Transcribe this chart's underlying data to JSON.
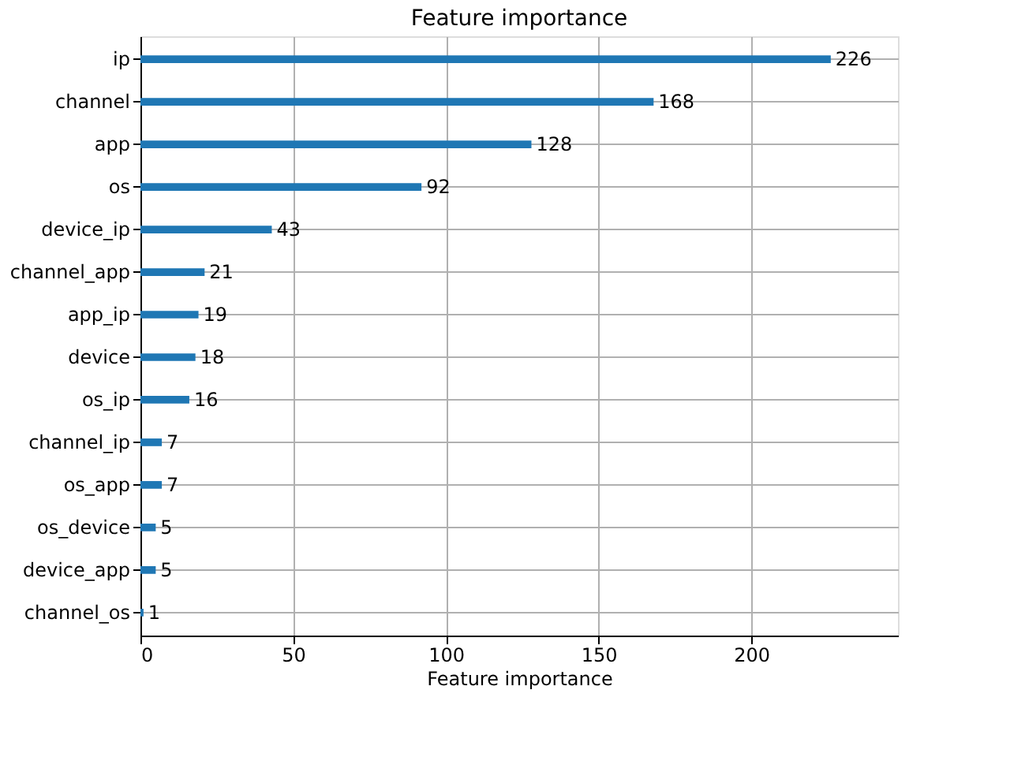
{
  "chart_data": {
    "type": "bar",
    "orientation": "horizontal",
    "title": "Feature importance",
    "xlabel": "Feature importance",
    "categories": [
      "ip",
      "channel",
      "app",
      "os",
      "device_ip",
      "channel_app",
      "app_ip",
      "device",
      "os_ip",
      "channel_ip",
      "os_app",
      "os_device",
      "device_app",
      "channel_os"
    ],
    "values": [
      226,
      168,
      128,
      92,
      43,
      21,
      19,
      18,
      16,
      7,
      7,
      5,
      5,
      1
    ],
    "color": "#1f77b4",
    "xlim": [
      0,
      248
    ],
    "xticks": [
      0,
      50,
      100,
      150,
      200
    ],
    "grid": true,
    "data_labels": true
  }
}
